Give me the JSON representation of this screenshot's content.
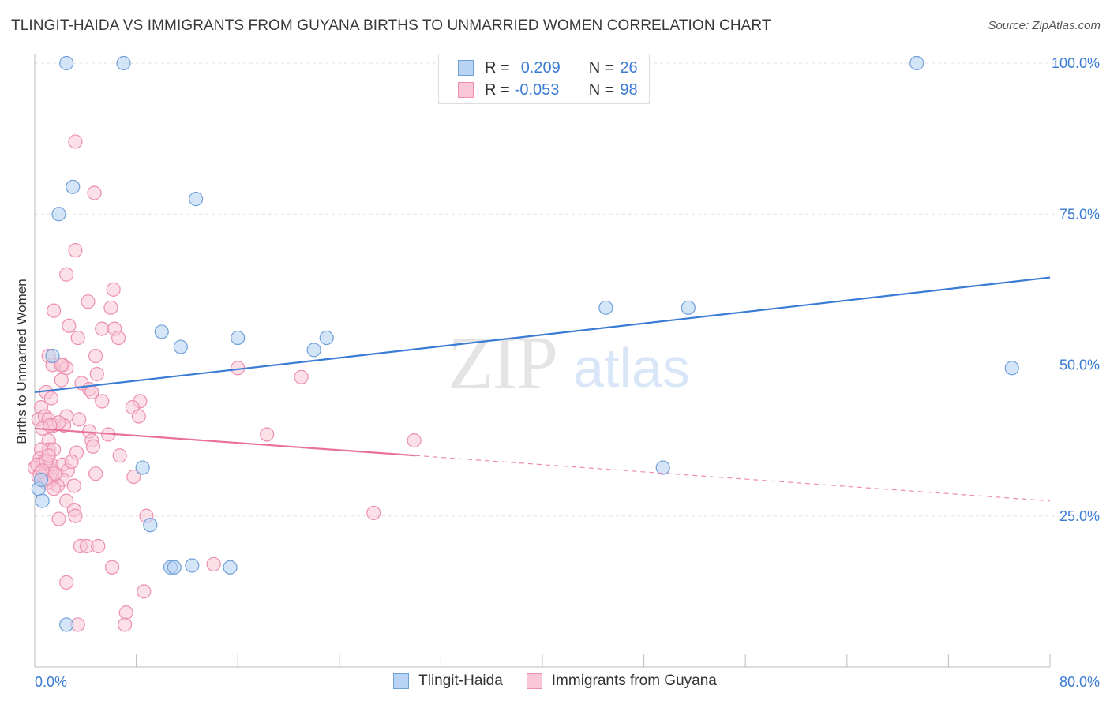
{
  "title": "TLINGIT-HAIDA VS IMMIGRANTS FROM GUYANA BIRTHS TO UNMARRIED WOMEN CORRELATION CHART",
  "source": "Source: ZipAtlas.com",
  "watermark": {
    "zip": "ZIP",
    "atlas": "atlas"
  },
  "colors": {
    "blue": "#3a7bd5",
    "blue_fill": "#b8d3f4",
    "blue_stroke": "#6f9fd8",
    "pink": "#e8709a",
    "pink_fill": "#f8c6d6",
    "pink_stroke": "#ec8fb0",
    "grid": "#e3e3e3",
    "axis_label": "#3a7bd5"
  },
  "legend": {
    "series": [
      {
        "r_label": "R =",
        "r_value": "0.209",
        "n_label": "N =",
        "n_value": "26"
      },
      {
        "r_label": "R =",
        "r_value": "-0.053",
        "n_label": "N =",
        "n_value": "98"
      }
    ]
  },
  "chart_data": {
    "type": "scatter",
    "title": "TLINGIT-HAIDA VS IMMIGRANTS FROM GUYANA BIRTHS TO UNMARRIED WOMEN CORRELATION CHART",
    "xlabel": "",
    "ylabel": "Births to Unmarried Women",
    "xlim": [
      0,
      80
    ],
    "ylim": [
      0,
      100
    ],
    "x_tick_labels": [
      "0.0%",
      "80.0%"
    ],
    "y_tick_labels": [
      "25.0%",
      "50.0%",
      "75.0%",
      "100.0%"
    ],
    "y_ticks": [
      25,
      50,
      75,
      100
    ],
    "legend_position": "bottom-center",
    "series": [
      {
        "name": "Tlingit-Haida",
        "r": 0.209,
        "n": 26,
        "trend": {
          "x0": 0,
          "y0": 45.5,
          "x1": 80,
          "y1": 64.5,
          "solid_to": 80
        },
        "points": [
          [
            2.5,
            100
          ],
          [
            7,
            100
          ],
          [
            69.5,
            100
          ],
          [
            3,
            79.5
          ],
          [
            1.9,
            75
          ],
          [
            12.7,
            77.5
          ],
          [
            10,
            55.5
          ],
          [
            11.5,
            53
          ],
          [
            16,
            54.5
          ],
          [
            22,
            52.5
          ],
          [
            23,
            54.5
          ],
          [
            45,
            59.5
          ],
          [
            51.5,
            59.5
          ],
          [
            77,
            49.5
          ],
          [
            1.4,
            51.5
          ],
          [
            8.5,
            33
          ],
          [
            49.5,
            33
          ],
          [
            0.3,
            29.5
          ],
          [
            0.6,
            27.5
          ],
          [
            9.1,
            23.5
          ],
          [
            10.7,
            16.5
          ],
          [
            11,
            16.5
          ],
          [
            12.4,
            16.8
          ],
          [
            15.4,
            16.5
          ],
          [
            2.5,
            7
          ],
          [
            0.5,
            31
          ]
        ]
      },
      {
        "name": "Immigrants from Guyana",
        "r": -0.053,
        "n": 98,
        "trend": {
          "x0": 0,
          "y0": 39.5,
          "x1": 80,
          "y1": 27.5,
          "solid_to": 30
        },
        "points": [
          [
            3.2,
            87
          ],
          [
            4.7,
            78.5
          ],
          [
            3.2,
            69
          ],
          [
            2.5,
            65
          ],
          [
            4.2,
            60.5
          ],
          [
            6.2,
            62.5
          ],
          [
            6,
            59.5
          ],
          [
            1.5,
            59
          ],
          [
            2.7,
            56.5
          ],
          [
            5.3,
            56
          ],
          [
            6.3,
            56
          ],
          [
            6.6,
            54.5
          ],
          [
            3.4,
            54.5
          ],
          [
            1.1,
            51.5
          ],
          [
            4.8,
            51.5
          ],
          [
            1.4,
            50
          ],
          [
            2.2,
            50
          ],
          [
            2.5,
            49.5
          ],
          [
            2.1,
            50
          ],
          [
            4.9,
            48.5
          ],
          [
            16,
            49.5
          ],
          [
            21,
            48
          ],
          [
            3.7,
            47
          ],
          [
            2.1,
            47.5
          ],
          [
            4.3,
            46
          ],
          [
            4.5,
            45.5
          ],
          [
            0.9,
            45.5
          ],
          [
            1.3,
            44.5
          ],
          [
            5.3,
            44
          ],
          [
            8.3,
            44
          ],
          [
            7.7,
            43
          ],
          [
            0.5,
            43
          ],
          [
            0.3,
            41
          ],
          [
            0.8,
            41.5
          ],
          [
            1.1,
            41
          ],
          [
            2.5,
            41.5
          ],
          [
            3.5,
            41
          ],
          [
            8.2,
            41.5
          ],
          [
            1.5,
            40
          ],
          [
            2.3,
            40
          ],
          [
            1.9,
            40.5
          ],
          [
            0.6,
            39.5
          ],
          [
            1.2,
            40
          ],
          [
            4.3,
            39
          ],
          [
            5.8,
            38.5
          ],
          [
            18.3,
            38.5
          ],
          [
            1.1,
            37.5
          ],
          [
            4.5,
            37.5
          ],
          [
            29.9,
            37.5
          ],
          [
            1.1,
            36
          ],
          [
            4.6,
            36.5
          ],
          [
            0.5,
            36
          ],
          [
            1.5,
            36
          ],
          [
            3.3,
            35.5
          ],
          [
            6.7,
            35
          ],
          [
            0.4,
            34.5
          ],
          [
            0.7,
            34
          ],
          [
            2.2,
            33.5
          ],
          [
            1.3,
            33
          ],
          [
            2.6,
            32.5
          ],
          [
            0,
            33
          ],
          [
            0.2,
            33.5
          ],
          [
            0.4,
            32
          ],
          [
            1.4,
            32.5
          ],
          [
            4.8,
            32
          ],
          [
            0.3,
            31.5
          ],
          [
            0.8,
            31
          ],
          [
            1.4,
            31
          ],
          [
            0.6,
            31.5
          ],
          [
            2.2,
            31
          ],
          [
            7.8,
            31.5
          ],
          [
            1.1,
            30.5
          ],
          [
            3.1,
            30
          ],
          [
            1.8,
            30
          ],
          [
            0.9,
            30.5
          ],
          [
            1.5,
            29.5
          ],
          [
            2.5,
            27.5
          ],
          [
            3.1,
            26
          ],
          [
            8.8,
            25
          ],
          [
            3.2,
            25
          ],
          [
            1.9,
            24.5
          ],
          [
            26.7,
            25.5
          ],
          [
            3.6,
            20
          ],
          [
            4.1,
            20
          ],
          [
            5,
            20
          ],
          [
            6.1,
            16.5
          ],
          [
            14.1,
            17
          ],
          [
            2.5,
            14
          ],
          [
            8.6,
            12.5
          ],
          [
            7.2,
            9
          ],
          [
            3.4,
            7
          ],
          [
            7.1,
            7
          ],
          [
            1.3,
            33.5
          ],
          [
            0.9,
            34
          ],
          [
            2.9,
            34
          ],
          [
            1.6,
            32
          ],
          [
            0.6,
            32.5
          ],
          [
            1.1,
            35
          ]
        ]
      }
    ]
  }
}
